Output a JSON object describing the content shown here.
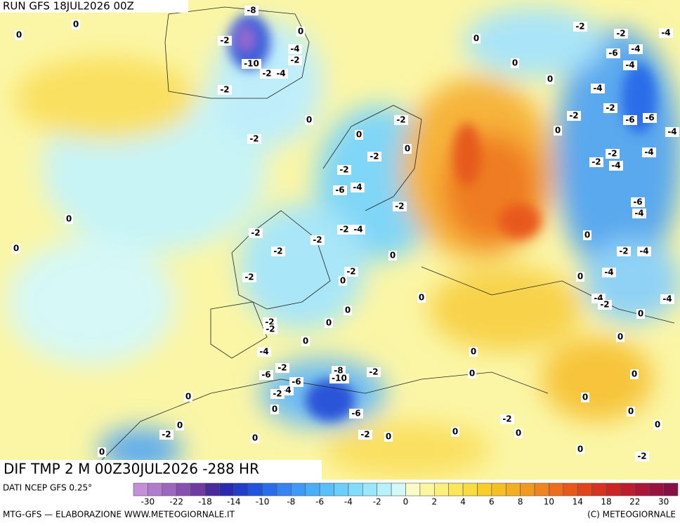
{
  "header": {
    "run": "RUN GFS 18JUL2026 00Z"
  },
  "map": {
    "caption": "DIF TMP 2 M 00Z30JUL2026 -288 HR",
    "labels": [
      -8,
      0,
      0,
      -2,
      0,
      -4,
      -2,
      -10,
      -2,
      -4,
      -2,
      0,
      0,
      0,
      -2,
      -2,
      -4,
      -6,
      -4,
      -4,
      -4,
      -2,
      -6,
      -6,
      -4,
      -2,
      0,
      -2,
      0,
      0,
      -2,
      -2,
      0,
      -2,
      -2,
      -4,
      -4,
      -2,
      -6,
      -4,
      -2,
      -6,
      -4,
      0,
      -2,
      -2,
      -4,
      -2,
      0,
      0,
      -2,
      0,
      -2,
      -4,
      -2,
      -2,
      0,
      -4,
      0,
      0,
      -4,
      -2,
      -4,
      0,
      -2,
      -2,
      0,
      0,
      0,
      0,
      -4,
      0,
      -6,
      -2,
      -8,
      -10,
      -2,
      0,
      0,
      -6,
      -4,
      -2,
      0,
      0,
      -6,
      0,
      0,
      -2,
      0,
      0,
      -2,
      -2,
      0,
      0,
      0,
      0,
      0,
      0,
      -2
    ]
  },
  "legend": {
    "source": "DATI NCEP GFS 0.25°",
    "colors": [
      "#c58fd8",
      "#b27ccc",
      "#9d66bf",
      "#8650b0",
      "#6f3aa3",
      "#4a2a9a",
      "#2a2ab0",
      "#1f3fc8",
      "#1f55dc",
      "#2a6de8",
      "#3584f0",
      "#3e9af5",
      "#49aef8",
      "#58c0fa",
      "#6ad0fb",
      "#80ddfb",
      "#9be8fa",
      "#b7f1f9",
      "#d2f8f8",
      "#fbfbc8",
      "#fbf7a0",
      "#fbf07a",
      "#fae75a",
      "#f9dc3e",
      "#f8cf2a",
      "#f6c024",
      "#f4ae22",
      "#f29a20",
      "#ef851e",
      "#ec6e1c",
      "#e8581b",
      "#e2431b",
      "#d8321f",
      "#cc2424",
      "#bd1b2e",
      "#ab1537",
      "#98123e",
      "#861044"
    ],
    "ticks": [
      -30,
      -22,
      -18,
      -14,
      -10,
      -8,
      -6,
      -4,
      -2,
      0,
      2,
      4,
      6,
      8,
      10,
      14,
      18,
      22,
      30
    ]
  },
  "footer": {
    "left": "MTG-GFS — ELABORAZIONE WWW.METEOGIORNALE.IT",
    "right": "(C) METEOGIORNALE"
  }
}
